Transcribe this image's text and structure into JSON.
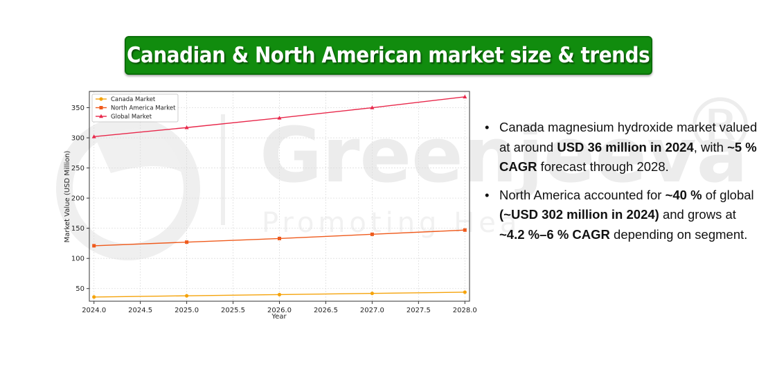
{
  "banner": {
    "title": "Canadian & North American market size & trends"
  },
  "watermark": {
    "brand": "Greenjeeva",
    "tagline": "Promoting Hea",
    "registered": "®"
  },
  "chart_data": {
    "type": "line",
    "x": [
      2024,
      2025,
      2026,
      2027,
      2028
    ],
    "series": [
      {
        "name": "Canada Market",
        "color": "#f5a30a",
        "marker": "circle",
        "values": [
          36,
          38,
          40,
          42,
          44
        ]
      },
      {
        "name": "North America Market",
        "color": "#ef5a1c",
        "marker": "square",
        "values": [
          121,
          127,
          133,
          140,
          147
        ]
      },
      {
        "name": "Global Market",
        "color": "#e8274a",
        "marker": "triangle",
        "values": [
          302,
          317,
          333,
          350,
          368
        ]
      }
    ],
    "xlabel": "Year",
    "ylabel": "Market Value (USD Million)",
    "xlim": [
      2023.95,
      2028.05
    ],
    "ylim": [
      29,
      377
    ],
    "xticks": [
      2024.0,
      2024.5,
      2025.0,
      2025.5,
      2026.0,
      2026.5,
      2027.0,
      2027.5,
      2028.0
    ],
    "xtick_labels": [
      "2024.0",
      "2024.5",
      "2025.0",
      "2025.5",
      "2026.0",
      "2026.5",
      "2027.0",
      "2027.5",
      "2028.0"
    ],
    "yticks": [
      50,
      100,
      150,
      200,
      250,
      300,
      350
    ],
    "ytick_labels": [
      "50",
      "100",
      "150",
      "200",
      "250",
      "300",
      "350"
    ],
    "grid": true,
    "legend_position": "upper-left"
  },
  "bullets": [
    {
      "marker": "•",
      "parts": [
        {
          "text": "Canada magnesium hydroxide market valued at around ",
          "bold": false
        },
        {
          "text": "USD 36 million in 2024",
          "bold": true
        },
        {
          "text": ", with ",
          "bold": false
        },
        {
          "text": "~5 % CAGR",
          "bold": true
        },
        {
          "text": " forecast through 2028.",
          "bold": false
        }
      ]
    },
    {
      "marker": "•",
      "parts": [
        {
          "text": " North America accounted for ",
          "bold": false
        },
        {
          "text": "~40 %",
          "bold": true
        },
        {
          "text": " of global ",
          "bold": false
        },
        {
          "text": "(~USD 302 million in 2024)",
          "bold": true
        },
        {
          "text": " and grows at ",
          "bold": false
        },
        {
          "text": "~4.2 %–6 % CAGR",
          "bold": true
        },
        {
          "text": " depending on segment.",
          "bold": false
        }
      ]
    }
  ]
}
